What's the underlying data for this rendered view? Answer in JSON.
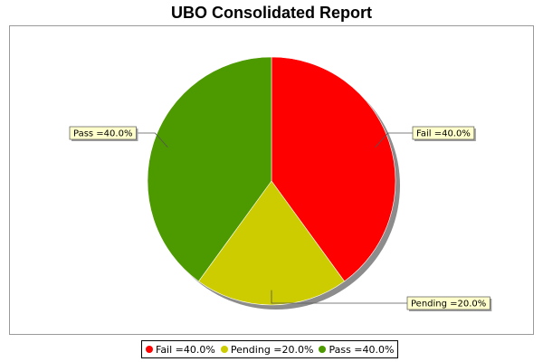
{
  "chart_data": {
    "type": "pie",
    "title": "UBO Consolidated Report",
    "slices": [
      {
        "name": "Fail",
        "value": 40.0,
        "label": "Fail =40.0%",
        "color": "#ff0000"
      },
      {
        "name": "Pending",
        "value": 20.0,
        "label": "Pending =20.0%",
        "color": "#cccc00"
      },
      {
        "name": "Pass",
        "value": 40.0,
        "label": "Pass =40.0%",
        "color": "#4d9900"
      }
    ],
    "legend": {
      "placement": "bottom",
      "entries": [
        "Fail =40.0%",
        "Pending =20.0%",
        "Pass =40.0%"
      ]
    }
  }
}
